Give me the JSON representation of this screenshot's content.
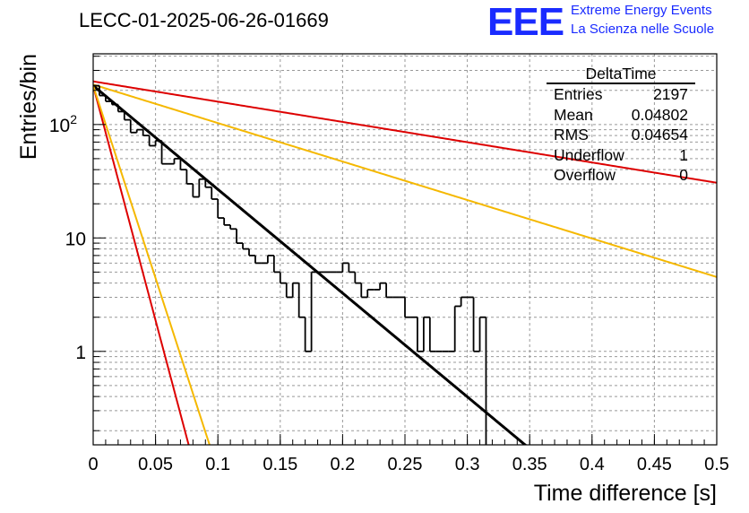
{
  "header": {
    "title": "LECC-01-2025-06-26-01669",
    "logo_text": "EEE",
    "logo_line1": "Extreme Energy Events",
    "logo_line2": "La Scienza nelle Scuole",
    "logo_color": "#1a2bff"
  },
  "stats_box": {
    "title": "DeltaTime",
    "rows": [
      {
        "key": "Entries",
        "value": "2197"
      },
      {
        "key": "Mean",
        "value": "0.04802"
      },
      {
        "key": "RMS",
        "value": "0.04654"
      },
      {
        "key": "Underflow",
        "value": "1"
      },
      {
        "key": "Overflow",
        "value": "0"
      }
    ]
  },
  "chart_data": {
    "type": "histogram",
    "title": "LECC-01-2025-06-26-01669",
    "xlabel": "Time difference [s]",
    "ylabel": "Entries/bin",
    "xlim": [
      0,
      0.5
    ],
    "ylim": [
      0.15,
      420
    ],
    "y_scale": "log",
    "grid": true,
    "x_ticks": [
      0,
      0.05,
      0.1,
      0.15,
      0.2,
      0.25,
      0.3,
      0.35,
      0.4,
      0.45,
      0.5
    ],
    "x_tick_labels": [
      "0",
      "0.05",
      "0.1",
      "0.15",
      "0.2",
      "0.25",
      "0.3",
      "0.35",
      "0.4",
      "0.45",
      "0.5"
    ],
    "y_tick_values": [
      1,
      10,
      100
    ],
    "y_tick_labels": [
      "1",
      "10",
      "10^2"
    ],
    "bin_width": 0.005,
    "bin_start": 0,
    "bin_contents": [
      220,
      180,
      160,
      150,
      130,
      110,
      85,
      90,
      80,
      65,
      72,
      45,
      45,
      50,
      40,
      30,
      23,
      33,
      28,
      22,
      15,
      13,
      12,
      9,
      8,
      7,
      6,
      6,
      7,
      5,
      4,
      3,
      4,
      2,
      1,
      5,
      5,
      5,
      5,
      5,
      6,
      5,
      4,
      3,
      3.5,
      3.5,
      4,
      3,
      3,
      3,
      2,
      2,
      1,
      2,
      1,
      1,
      1,
      1,
      2.5,
      3,
      3,
      1,
      2,
      0,
      0,
      0,
      0,
      0,
      0,
      0,
      0,
      0,
      0,
      0,
      0,
      0,
      0,
      0,
      0,
      0,
      0,
      0,
      0,
      0,
      0,
      0,
      0,
      0,
      0,
      0,
      0,
      0,
      0,
      0,
      0,
      0,
      0,
      0,
      0,
      0
    ],
    "fits": [
      {
        "color": "#000000",
        "amplitude": 220,
        "tau": 0.0475
      },
      {
        "color": "#dd0000",
        "amplitude": 240,
        "tau": 0.243
      },
      {
        "color": "#f5b800",
        "amplitude": 225,
        "tau": 0.128
      },
      {
        "color": "#dd0000",
        "amplitude": 220,
        "tau": 0.0105
      },
      {
        "color": "#f5b800",
        "amplitude": 220,
        "tau": 0.0128
      }
    ]
  }
}
